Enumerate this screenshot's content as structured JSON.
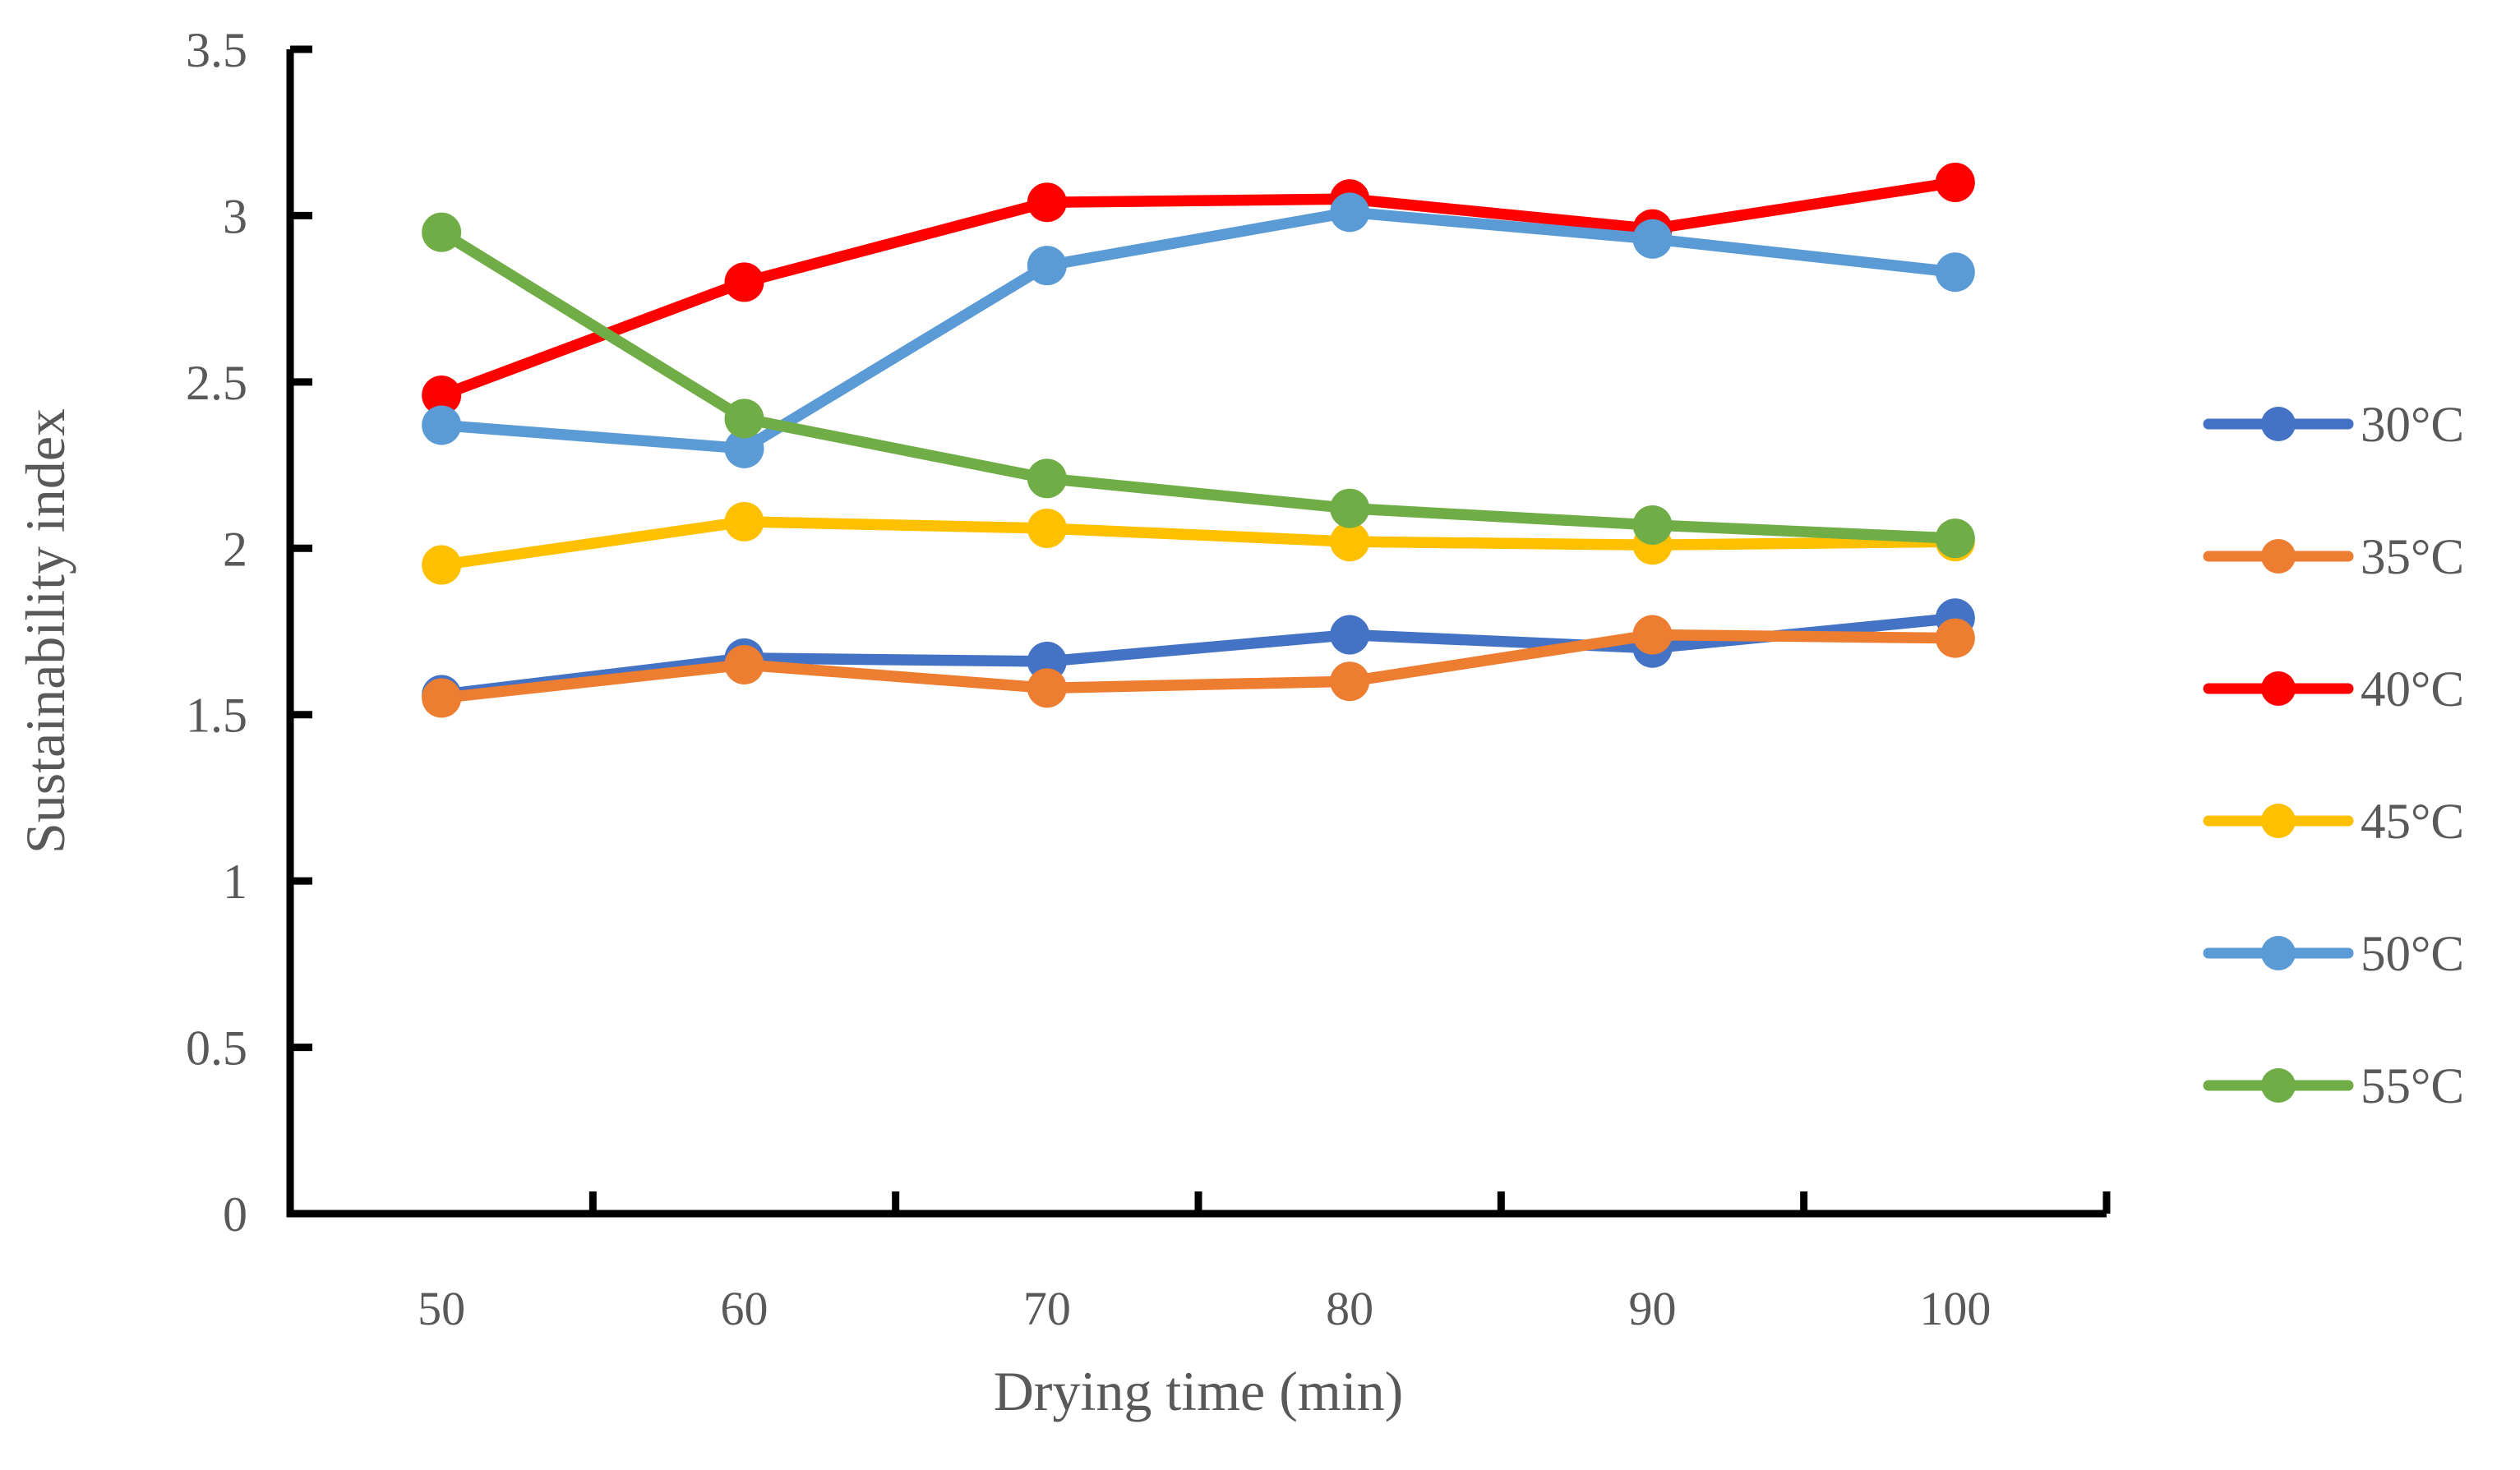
{
  "chart_data": {
    "type": "line",
    "title": "",
    "xlabel": "Drying time (min)",
    "ylabel": "Sustainability index",
    "categories": [
      50,
      60,
      70,
      80,
      90,
      100
    ],
    "y_ticks": [
      0,
      0.5,
      1,
      1.5,
      2,
      2.5,
      3,
      3.5
    ],
    "ylim": [
      0,
      3.5
    ],
    "grid": false,
    "legend_position": "right",
    "axis_color": "#000000",
    "text_color": "#595959",
    "background_color": "#ffffff",
    "marker": "circle",
    "series": [
      {
        "name": "30°C",
        "color": "#4472C4",
        "values": [
          1.56,
          1.67,
          1.66,
          1.74,
          1.7,
          1.79
        ]
      },
      {
        "name": "35°C",
        "color": "#ED7D31",
        "values": [
          1.55,
          1.65,
          1.58,
          1.6,
          1.74,
          1.73
        ]
      },
      {
        "name": "40°C",
        "color": "#FF0000",
        "values": [
          2.46,
          2.8,
          3.04,
          3.05,
          2.96,
          3.1
        ]
      },
      {
        "name": "45°C",
        "color": "#FFC000",
        "values": [
          1.95,
          2.08,
          2.06,
          2.02,
          2.01,
          2.02
        ]
      },
      {
        "name": "50°C",
        "color": "#5B9BD5",
        "values": [
          2.37,
          2.3,
          2.85,
          3.01,
          2.93,
          2.83
        ]
      },
      {
        "name": "55°C",
        "color": "#70AD47",
        "values": [
          2.95,
          2.39,
          2.21,
          2.12,
          2.07,
          2.03
        ]
      }
    ]
  }
}
